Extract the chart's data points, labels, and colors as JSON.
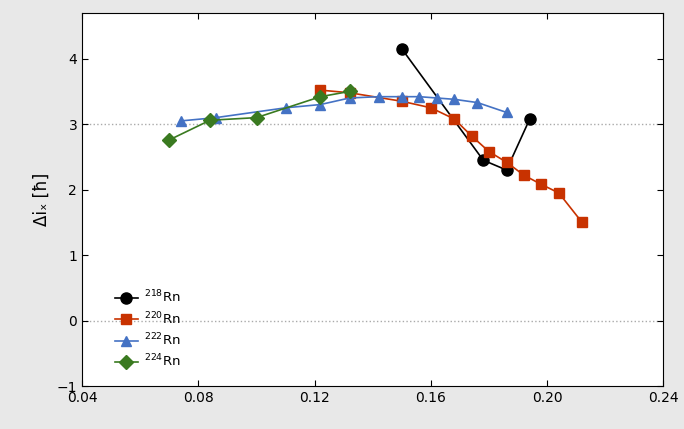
{
  "title": "",
  "xlabel": "",
  "ylabel": "Δiₓ [ħ]",
  "xlim": [
    0.04,
    0.24
  ],
  "ylim": [
    -1.0,
    4.7
  ],
  "yticks": [
    -1,
    0,
    1,
    2,
    3,
    4
  ],
  "xticks": [
    0.04,
    0.08,
    0.12,
    0.16,
    0.2,
    0.24
  ],
  "hlines": [
    0,
    3
  ],
  "background_color": "#ffffff",
  "fig_facecolor": "#e8e8e8",
  "series": [
    {
      "label": "$^{218}$Rn",
      "color": "black",
      "marker": "o",
      "markersize": 8,
      "linewidth": 1.2,
      "x": [
        0.15,
        0.178,
        0.186,
        0.194
      ],
      "y": [
        4.15,
        2.45,
        2.3,
        3.08
      ]
    },
    {
      "label": "$^{220}$Rn",
      "color": "#c83200",
      "marker": "s",
      "markersize": 7,
      "linewidth": 1.2,
      "x": [
        0.122,
        0.132,
        0.15,
        0.16,
        0.168,
        0.174,
        0.18,
        0.186,
        0.192,
        0.198,
        0.204,
        0.212
      ],
      "y": [
        3.52,
        3.48,
        3.35,
        3.25,
        3.08,
        2.82,
        2.58,
        2.42,
        2.22,
        2.08,
        1.95,
        1.5
      ]
    },
    {
      "label": "$^{222}$Rn",
      "color": "#4472c4",
      "marker": "^",
      "markersize": 7,
      "linewidth": 1.2,
      "x": [
        0.074,
        0.086,
        0.11,
        0.122,
        0.132,
        0.142,
        0.15,
        0.156,
        0.162,
        0.168,
        0.176,
        0.186
      ],
      "y": [
        3.05,
        3.1,
        3.25,
        3.3,
        3.4,
        3.42,
        3.42,
        3.42,
        3.4,
        3.38,
        3.33,
        3.18
      ]
    },
    {
      "label": "$^{224}$Rn",
      "color": "#3a7a20",
      "marker": "D",
      "markersize": 7,
      "linewidth": 1.2,
      "x": [
        0.07,
        0.084,
        0.1,
        0.122,
        0.132
      ],
      "y": [
        2.76,
        3.06,
        3.1,
        3.42,
        3.5
      ]
    }
  ]
}
